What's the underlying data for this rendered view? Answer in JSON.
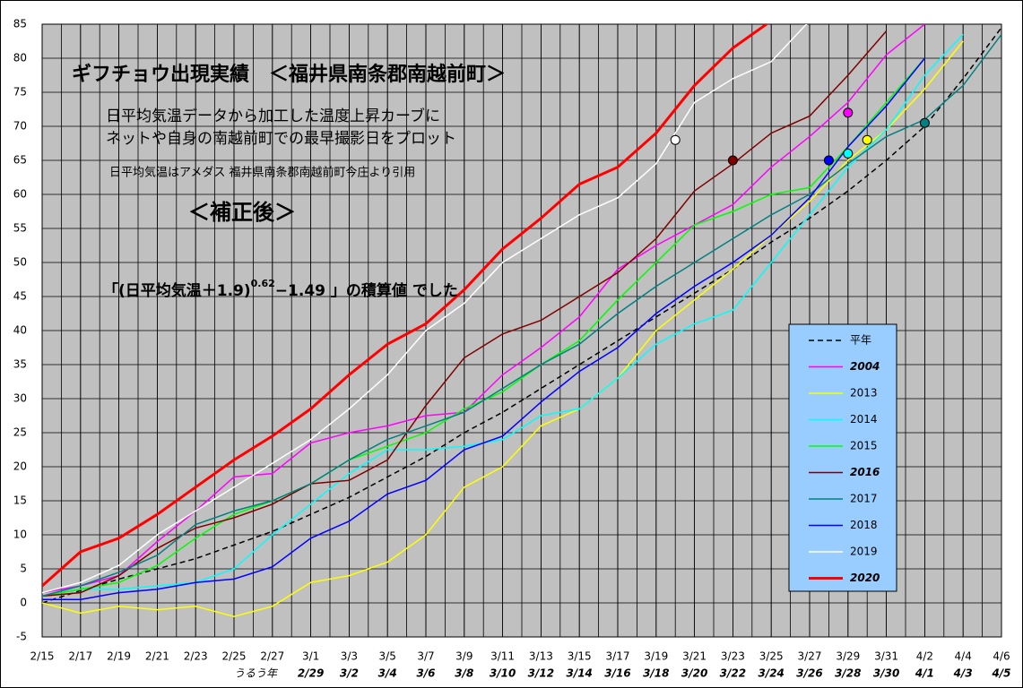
{
  "chart_data": {
    "type": "line",
    "title": "ギフチョウ出現実績　＜福井県南条郡南越前町＞",
    "notes": [
      "日平均気温データから加工した温度上昇カーブに",
      "ネットや自身の南越前町での最早撮影日をプロット",
      "日平均気温はアメダス 福井県南条郡南越前町今庄より引用"
    ],
    "subtitle": "＜補正後＞",
    "formula": {
      "pre": "「(日平均気温＋1.9)",
      "sup": "0.62",
      "post": "−1.49 」の積算値 でした"
    },
    "leap_label": "うるう年",
    "x": [
      0,
      2,
      4,
      6,
      8,
      10,
      12,
      14,
      16,
      18,
      20,
      22,
      24,
      26,
      28,
      30,
      32,
      34,
      36,
      38,
      40,
      42,
      44,
      46,
      48,
      50
    ],
    "xlim": [
      0,
      50
    ],
    "xticks": [
      {
        "value": 0,
        "label": "2/15"
      },
      {
        "value": 2,
        "label": "2/17"
      },
      {
        "value": 4,
        "label": "2/19"
      },
      {
        "value": 6,
        "label": "2/21"
      },
      {
        "value": 8,
        "label": "2/23"
      },
      {
        "value": 10,
        "label": "2/25"
      },
      {
        "value": 12,
        "label": "2/27"
      },
      {
        "value": 14,
        "label": "3/1"
      },
      {
        "value": 16,
        "label": "3/3"
      },
      {
        "value": 18,
        "label": "3/5"
      },
      {
        "value": 20,
        "label": "3/7"
      },
      {
        "value": 22,
        "label": "3/9"
      },
      {
        "value": 24,
        "label": "3/11"
      },
      {
        "value": 26,
        "label": "3/13"
      },
      {
        "value": 28,
        "label": "3/15"
      },
      {
        "value": 30,
        "label": "3/17"
      },
      {
        "value": 32,
        "label": "3/19"
      },
      {
        "value": 34,
        "label": "3/21"
      },
      {
        "value": 36,
        "label": "3/23"
      },
      {
        "value": 38,
        "label": "3/25"
      },
      {
        "value": 40,
        "label": "3/27"
      },
      {
        "value": 42,
        "label": "3/29"
      },
      {
        "value": 44,
        "label": "3/31"
      },
      {
        "value": 46,
        "label": "4/2"
      },
      {
        "value": 48,
        "label": "4/4"
      },
      {
        "value": 50,
        "label": "4/6"
      }
    ],
    "leap_ticks": [
      {
        "value": 14,
        "label": "2/29"
      },
      {
        "value": 16,
        "label": "3/2"
      },
      {
        "value": 18,
        "label": "3/4"
      },
      {
        "value": 20,
        "label": "3/6"
      },
      {
        "value": 22,
        "label": "3/8"
      },
      {
        "value": 24,
        "label": "3/10"
      },
      {
        "value": 26,
        "label": "3/12"
      },
      {
        "value": 28,
        "label": "3/14"
      },
      {
        "value": 30,
        "label": "3/16"
      },
      {
        "value": 32,
        "label": "3/18"
      },
      {
        "value": 34,
        "label": "3/20"
      },
      {
        "value": 36,
        "label": "3/22"
      },
      {
        "value": 38,
        "label": "3/24"
      },
      {
        "value": 40,
        "label": "3/26"
      },
      {
        "value": 42,
        "label": "3/28"
      },
      {
        "value": 44,
        "label": "3/30"
      },
      {
        "value": 46,
        "label": "4/1"
      },
      {
        "value": 48,
        "label": "4/3"
      },
      {
        "value": 50,
        "label": "4/5"
      }
    ],
    "ylim": [
      -5,
      85
    ],
    "yticks": [
      -5,
      0,
      5,
      10,
      15,
      20,
      25,
      30,
      35,
      40,
      45,
      50,
      55,
      60,
      65,
      70,
      75,
      80,
      85
    ],
    "grid": true,
    "series": [
      {
        "name": "平年",
        "color": "#000000",
        "dashed": true,
        "values": [
          0,
          1.8,
          3.5,
          5,
          6.5,
          8.5,
          10.5,
          13,
          15.5,
          18.5,
          21.5,
          25,
          28,
          31.5,
          35,
          38.5,
          42,
          45.5,
          49,
          53,
          56.5,
          60.5,
          65,
          70,
          77,
          84.5
        ]
      },
      {
        "name": "2004",
        "color": "#ff00ff",
        "emphasis": true,
        "values": [
          1.5,
          2.5,
          4,
          9,
          13.5,
          18.5,
          19,
          23.5,
          25,
          26,
          27.5,
          28,
          33.5,
          37.5,
          42,
          49,
          52.5,
          55.5,
          58.5,
          64,
          68.5,
          73.5,
          80.5,
          85,
          null,
          null
        ],
        "sighting": {
          "x": 42,
          "value": 72
        }
      },
      {
        "name": "2013",
        "color": "#ffff00",
        "values": [
          0,
          -1.5,
          -0.5,
          -1,
          -0.5,
          -2,
          -0.5,
          3,
          4,
          6,
          10,
          17,
          20,
          26,
          28.5,
          33,
          40,
          44.5,
          49,
          54,
          59,
          65,
          69.5,
          75.5,
          82.5,
          null
        ],
        "sighting": {
          "x": 43,
          "value": 68
        }
      },
      {
        "name": "2014",
        "color": "#00ffff",
        "values": [
          1,
          2,
          2,
          2.5,
          3,
          5,
          10,
          14.5,
          19,
          22.5,
          22.5,
          23,
          24,
          27.5,
          28.5,
          33,
          38,
          41,
          43,
          50,
          57,
          64,
          69.5,
          77.5,
          83.5,
          null
        ],
        "sighting": {
          "x": 42,
          "value": 66
        }
      },
      {
        "name": "2015",
        "color": "#00ff00",
        "values": [
          1,
          2,
          3,
          5.5,
          9.5,
          13,
          15,
          17.5,
          21,
          23,
          25,
          28.5,
          31,
          35,
          38.5,
          44.5,
          50,
          55.5,
          57.5,
          60,
          61,
          67,
          73.5,
          80,
          null,
          null
        ]
      },
      {
        "name": "2016",
        "color": "#800000",
        "emphasis": true,
        "values": [
          1,
          1.5,
          4,
          8,
          11,
          12.5,
          14.5,
          17.5,
          18,
          21,
          29,
          36,
          39.5,
          41.5,
          45,
          48.5,
          53.5,
          60.5,
          64.5,
          69,
          71.5,
          77.5,
          84,
          null,
          null,
          null
        ],
        "sighting": {
          "x": 36,
          "value": 65
        }
      },
      {
        "name": "2017",
        "color": "#008080",
        "values": [
          1,
          2.5,
          4.5,
          7,
          11.5,
          13.5,
          15,
          17.5,
          21,
          24,
          26,
          28,
          31.5,
          35,
          38,
          42.5,
          46.5,
          50,
          53.5,
          57,
          60,
          64.5,
          68.5,
          71,
          76,
          83.5
        ],
        "sighting": {
          "x": 46,
          "value": 70.5
        }
      },
      {
        "name": "2018",
        "color": "#0000ff",
        "values": [
          0.5,
          0.5,
          1.5,
          2,
          3,
          3.5,
          5.3,
          9.5,
          12,
          16,
          18,
          22.5,
          24.5,
          29.5,
          34,
          37.5,
          42.5,
          46.5,
          50,
          54,
          59.5,
          67,
          73,
          80,
          null,
          null
        ],
        "sighting": {
          "x": 41,
          "value": 65
        }
      },
      {
        "name": "2019",
        "color": "#ffffff",
        "values": [
          1.5,
          3,
          5.5,
          10,
          13.5,
          17,
          20.5,
          24,
          28.5,
          33.5,
          40,
          44,
          50,
          53.5,
          57,
          59.5,
          64.5,
          73.5,
          77,
          79.5,
          85.5,
          null,
          null,
          null,
          null,
          null
        ],
        "sighting": {
          "x": 33,
          "value": 68
        }
      },
      {
        "name": "2020",
        "color": "#ff0000",
        "emphasis": true,
        "thick": true,
        "values": [
          2.5,
          7.5,
          9.5,
          13,
          17,
          21,
          24.5,
          28.5,
          33.5,
          38,
          41,
          46,
          52,
          56.5,
          61.5,
          64,
          69,
          76,
          81.5,
          85.5,
          null,
          null,
          null,
          null,
          null,
          null
        ]
      }
    ]
  }
}
